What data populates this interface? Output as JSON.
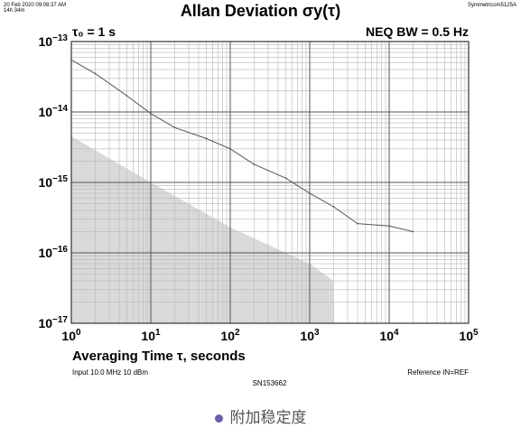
{
  "header": {
    "datetime_line1": "20 Feb 2020 09:08:37 AM",
    "datetime_line2": "14h 34m",
    "instrument": "Symmetricom5125A"
  },
  "info": {
    "tau0": "τ₀ = 1 s",
    "neq_bw": "NEQ BW = 0.5 Hz"
  },
  "footer": {
    "input": "Input 10.0 MHz 10 dBm",
    "serial": "SN153662",
    "reference": "Reference IN=REF"
  },
  "caption": "附加稳定度",
  "chart_data": {
    "type": "line",
    "title": "Allan Deviation σy(τ)",
    "xlabel": "Averaging Time τ, seconds",
    "ylabel": "",
    "x_scale": "log",
    "y_scale": "log",
    "xlim": [
      1,
      100000
    ],
    "ylim": [
      1e-17,
      1e-13
    ],
    "grid": true,
    "x_ticks": [
      {
        "value": 1,
        "mantissa": "10",
        "exp": "0"
      },
      {
        "value": 10,
        "mantissa": "10",
        "exp": "1"
      },
      {
        "value": 100,
        "mantissa": "10",
        "exp": "2"
      },
      {
        "value": 1000,
        "mantissa": "10",
        "exp": "3"
      },
      {
        "value": 10000,
        "mantissa": "10",
        "exp": "4"
      },
      {
        "value": 100000,
        "mantissa": "10",
        "exp": "5"
      }
    ],
    "y_ticks": [
      {
        "value": 1e-13,
        "mantissa": "10",
        "exp": "−13"
      },
      {
        "value": 1e-14,
        "mantissa": "10",
        "exp": "−14"
      },
      {
        "value": 1e-15,
        "mantissa": "10",
        "exp": "−15"
      },
      {
        "value": 1e-16,
        "mantissa": "10",
        "exp": "−16"
      },
      {
        "value": 1e-17,
        "mantissa": "10",
        "exp": "−17"
      }
    ],
    "series": [
      {
        "x": [
          1,
          2,
          5,
          10,
          20,
          50,
          100,
          200,
          500,
          1000,
          2000,
          4000,
          10000,
          20000
        ],
        "y": [
          5.5e-14,
          3.5e-14,
          1.7e-14,
          9.5e-15,
          6e-15,
          4.2e-15,
          3e-15,
          1.8e-15,
          1.15e-15,
          7e-16,
          4.5e-16,
          2.6e-16,
          2.4e-16,
          2e-16
        ],
        "color": "#555555"
      }
    ],
    "shaded_region": {
      "x": [
        1,
        10,
        100,
        300,
        1000,
        2000,
        2000,
        1
      ],
      "y": [
        4.5e-15,
        1e-15,
        2.3e-16,
        1.3e-16,
        7e-17,
        4e-17,
        1e-17,
        1e-17
      ],
      "color": "#d9d9d9"
    }
  }
}
